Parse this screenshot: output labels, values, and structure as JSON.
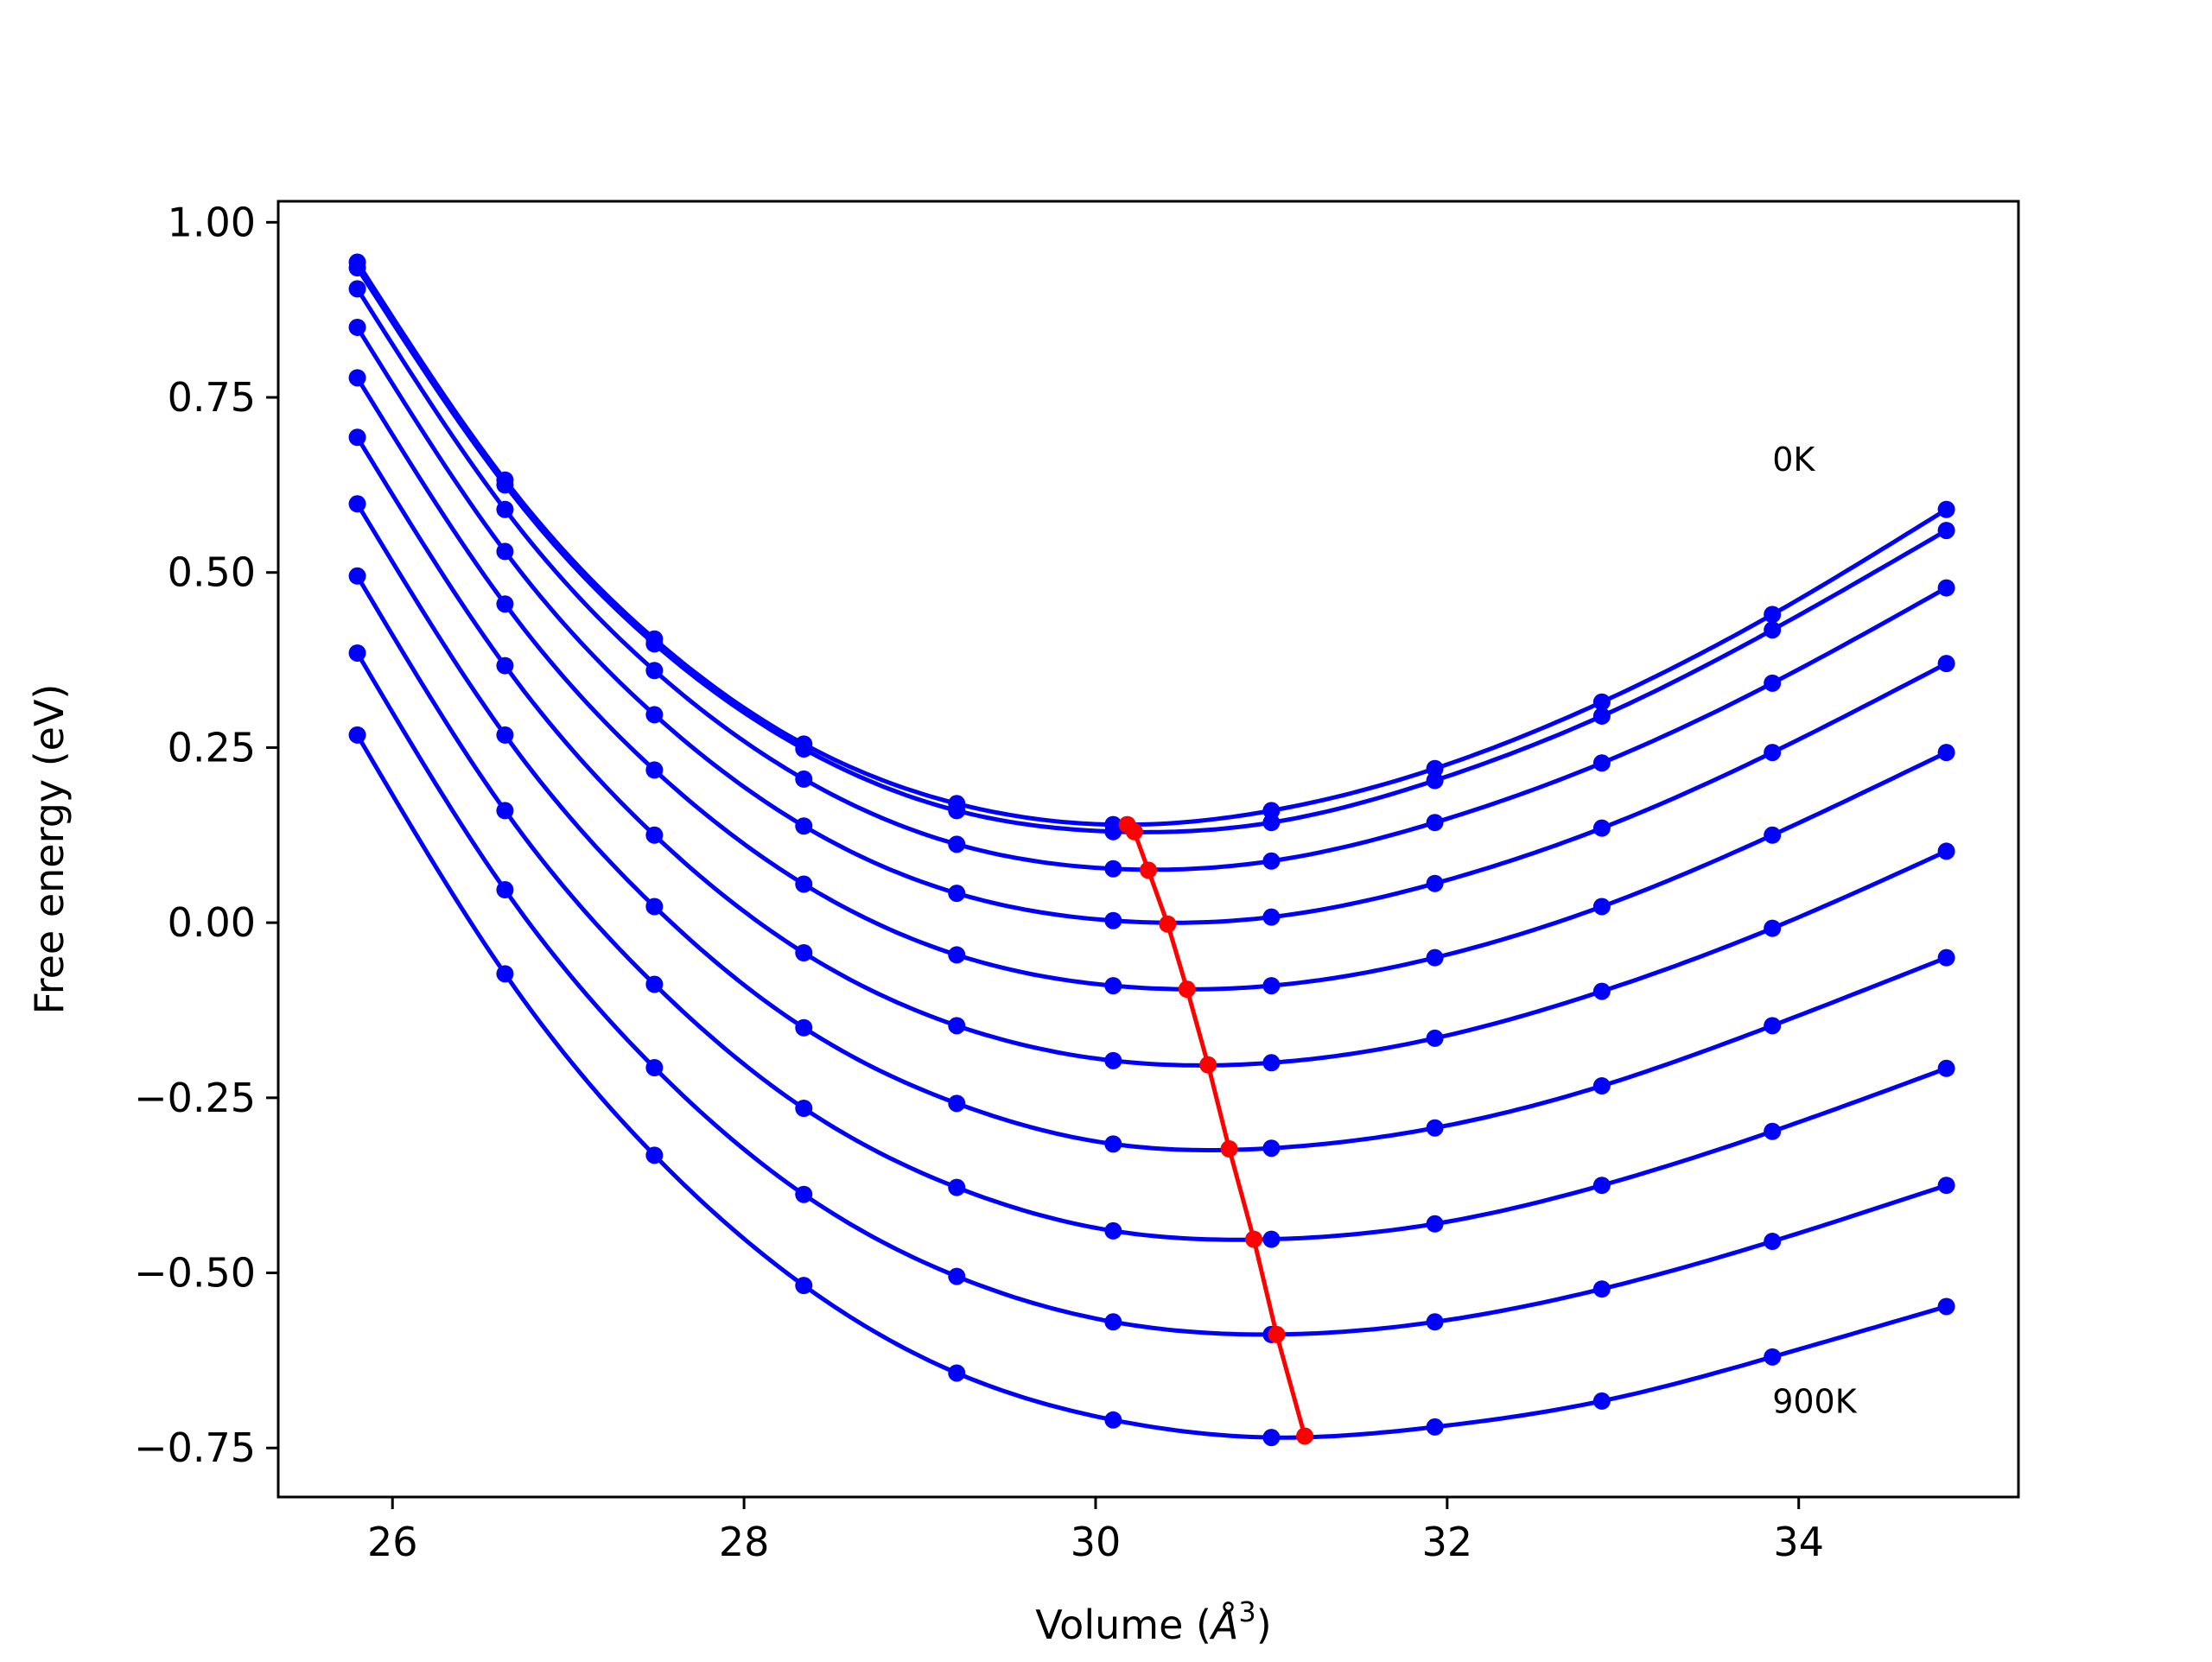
{
  "chart_data": {
    "type": "line",
    "xlabel": "Volume (",
    "xlabel_unit": "Å",
    "xlabel_sup": "3",
    "xlabel_close": ")",
    "ylabel": "Free energy (eV)",
    "xlim": [
      25.35,
      35.25
    ],
    "ylim": [
      -0.82,
      1.03
    ],
    "xticks": [
      26,
      28,
      30,
      32,
      34
    ],
    "yticks": [
      1.0,
      0.75,
      0.5,
      0.25,
      0.0,
      -0.25,
      -0.5,
      -0.75
    ],
    "xtick_labels": [
      "26",
      "28",
      "30",
      "32",
      "34"
    ],
    "ytick_labels": [
      "1.00",
      "0.75",
      "0.50",
      "0.25",
      "0.00",
      "−0.25",
      "−0.50",
      "−0.75"
    ],
    "grid": false,
    "annotations": [
      {
        "text": "0K",
        "x": 33.85,
        "y": 0.645
      },
      {
        "text": "900K",
        "x": 33.85,
        "y": -0.7
      }
    ],
    "colors": {
      "series": "#0000ff",
      "minimum_line": "#ff0000",
      "frame": "#000000"
    },
    "x": [
      25.8,
      26.64,
      27.49,
      28.34,
      29.21,
      30.1,
      31.0,
      31.93,
      32.88,
      33.85,
      34.84
    ],
    "series": [
      {
        "values": [
          0.943,
          0.632,
          0.405,
          0.255,
          0.17,
          0.14,
          0.16,
          0.22,
          0.315,
          0.44,
          0.59
        ]
      },
      {
        "values": [
          0.935,
          0.625,
          0.398,
          0.248,
          0.16,
          0.13,
          0.143,
          0.203,
          0.295,
          0.418,
          0.56
        ]
      },
      {
        "values": [
          0.905,
          0.59,
          0.36,
          0.205,
          0.112,
          0.077,
          0.088,
          0.143,
          0.228,
          0.342,
          0.478
        ]
      },
      {
        "values": [
          0.85,
          0.53,
          0.297,
          0.138,
          0.042,
          0.003,
          0.008,
          0.056,
          0.135,
          0.243,
          0.37
        ]
      },
      {
        "values": [
          0.778,
          0.455,
          0.218,
          0.055,
          -0.046,
          -0.09,
          -0.09,
          -0.05,
          0.023,
          0.125,
          0.243
        ]
      },
      {
        "values": [
          0.693,
          0.367,
          0.125,
          -0.043,
          -0.147,
          -0.197,
          -0.2,
          -0.165,
          -0.098,
          -0.008,
          0.102
        ]
      },
      {
        "values": [
          0.598,
          0.268,
          0.023,
          -0.15,
          -0.258,
          -0.316,
          -0.322,
          -0.293,
          -0.233,
          -0.147,
          -0.05
        ]
      },
      {
        "values": [
          0.495,
          0.16,
          -0.088,
          -0.265,
          -0.378,
          -0.44,
          -0.452,
          -0.43,
          -0.375,
          -0.298,
          -0.208
        ]
      },
      {
        "values": [
          0.385,
          0.047,
          -0.207,
          -0.388,
          -0.505,
          -0.57,
          -0.588,
          -0.57,
          -0.523,
          -0.455,
          -0.375
        ]
      },
      {
        "values": [
          0.268,
          -0.073,
          -0.332,
          -0.518,
          -0.643,
          -0.71,
          -0.735,
          -0.72,
          -0.683,
          -0.62,
          -0.548
        ]
      }
    ],
    "minimum_curve": {
      "x": [
        30.18,
        30.22,
        30.3,
        30.41,
        30.52,
        30.64,
        30.76,
        30.9,
        31.03,
        31.19
      ],
      "y": [
        0.14,
        0.13,
        0.075,
        -0.002,
        -0.095,
        -0.203,
        -0.323,
        -0.452,
        -0.588,
        -0.733
      ]
    }
  }
}
